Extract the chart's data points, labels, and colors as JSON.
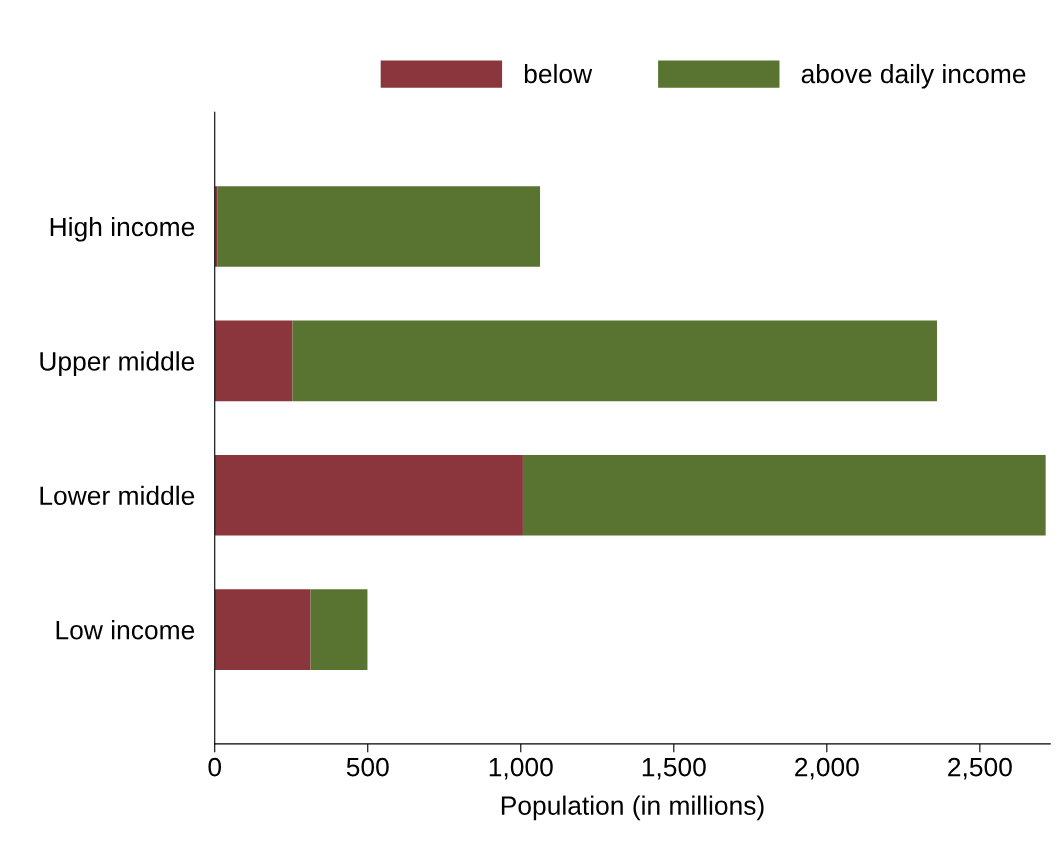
{
  "chart_data": {
    "type": "bar",
    "orientation": "horizontal",
    "stacked": true,
    "categories": [
      "High income",
      "Upper middle",
      "Lower middle",
      "Low income"
    ],
    "series": [
      {
        "name": "below",
        "color": "#8b363d",
        "values": [
          8,
          254,
          1007,
          313
        ]
      },
      {
        "name": "above daily income",
        "color": "#587430",
        "values": [
          1055,
          2106,
          1708,
          186
        ]
      }
    ],
    "xlabel": "Population (in millions)",
    "xlim": [
      0,
      2730
    ],
    "xticks": [
      0,
      {
        "value": 500,
        "label": "500"
      },
      {
        "value": 1000,
        "label": "1,000"
      },
      {
        "value": 1500,
        "label": "1,500"
      },
      {
        "value": 2000,
        "label": "2,000"
      },
      {
        "value": 2500,
        "label": "2,500"
      }
    ],
    "grid": false,
    "legend": "top right"
  }
}
